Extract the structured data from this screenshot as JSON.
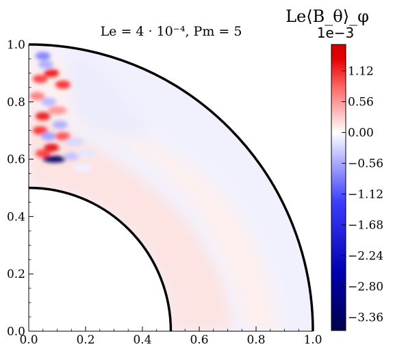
{
  "chart_data": {
    "type": "heatmap",
    "title": "Le = 4 · 10⁻⁴, Pm = 5",
    "xlabel": "",
    "ylabel": "",
    "xlim": [
      0.0,
      1.0
    ],
    "ylim": [
      0.0,
      1.0
    ],
    "x_ticks": [
      "0.0",
      "0.2",
      "0.4",
      "0.6",
      "0.8",
      "1.0"
    ],
    "y_ticks": [
      "0.0",
      "0.2",
      "0.4",
      "0.6",
      "0.8",
      "1.0"
    ],
    "domain": {
      "shape": "quarter spherical shell",
      "inner_radius": 0.5,
      "outer_radius": 1.0
    },
    "colorbar": {
      "label": "Le⟨B_θ⟩_φ",
      "multiplier": "1e−3",
      "colormap": "seismic",
      "range": [
        -3.6,
        1.6
      ],
      "tick_values": [
        1.12,
        0.56,
        0.0,
        -0.56,
        -1.12,
        -1.68,
        -2.24,
        -2.8,
        -3.36
      ],
      "tick_labels": [
        "1.12",
        "0.56",
        "0.00",
        "−0.56",
        "−1.12",
        "−1.68",
        "−2.24",
        "−2.80",
        "−3.36"
      ]
    },
    "features": [
      {
        "x": 0.05,
        "y": 0.96,
        "value": -1.2
      },
      {
        "x": 0.06,
        "y": 0.93,
        "value": -0.8
      },
      {
        "x": 0.08,
        "y": 0.9,
        "value": 1.2
      },
      {
        "x": 0.04,
        "y": 0.88,
        "value": 0.9
      },
      {
        "x": 0.12,
        "y": 0.86,
        "value": 1.0
      },
      {
        "x": 0.03,
        "y": 0.82,
        "value": 0.6
      },
      {
        "x": 0.07,
        "y": 0.8,
        "value": -0.7
      },
      {
        "x": 0.1,
        "y": 0.77,
        "value": 0.5
      },
      {
        "x": 0.05,
        "y": 0.75,
        "value": 1.2
      },
      {
        "x": 0.11,
        "y": 0.72,
        "value": -0.8
      },
      {
        "x": 0.04,
        "y": 0.7,
        "value": 1.0
      },
      {
        "x": 0.07,
        "y": 0.68,
        "value": -0.9
      },
      {
        "x": 0.12,
        "y": 0.68,
        "value": 0.8
      },
      {
        "x": 0.16,
        "y": 0.66,
        "value": -0.4
      },
      {
        "x": 0.08,
        "y": 0.64,
        "value": 1.3
      },
      {
        "x": 0.05,
        "y": 0.62,
        "value": 0.9
      },
      {
        "x": 0.09,
        "y": 0.6,
        "value": -3.3
      },
      {
        "x": 0.15,
        "y": 0.61,
        "value": -0.6
      },
      {
        "x": 0.2,
        "y": 0.62,
        "value": -0.25
      },
      {
        "x": 0.19,
        "y": 0.57,
        "value": -0.15
      }
    ]
  }
}
